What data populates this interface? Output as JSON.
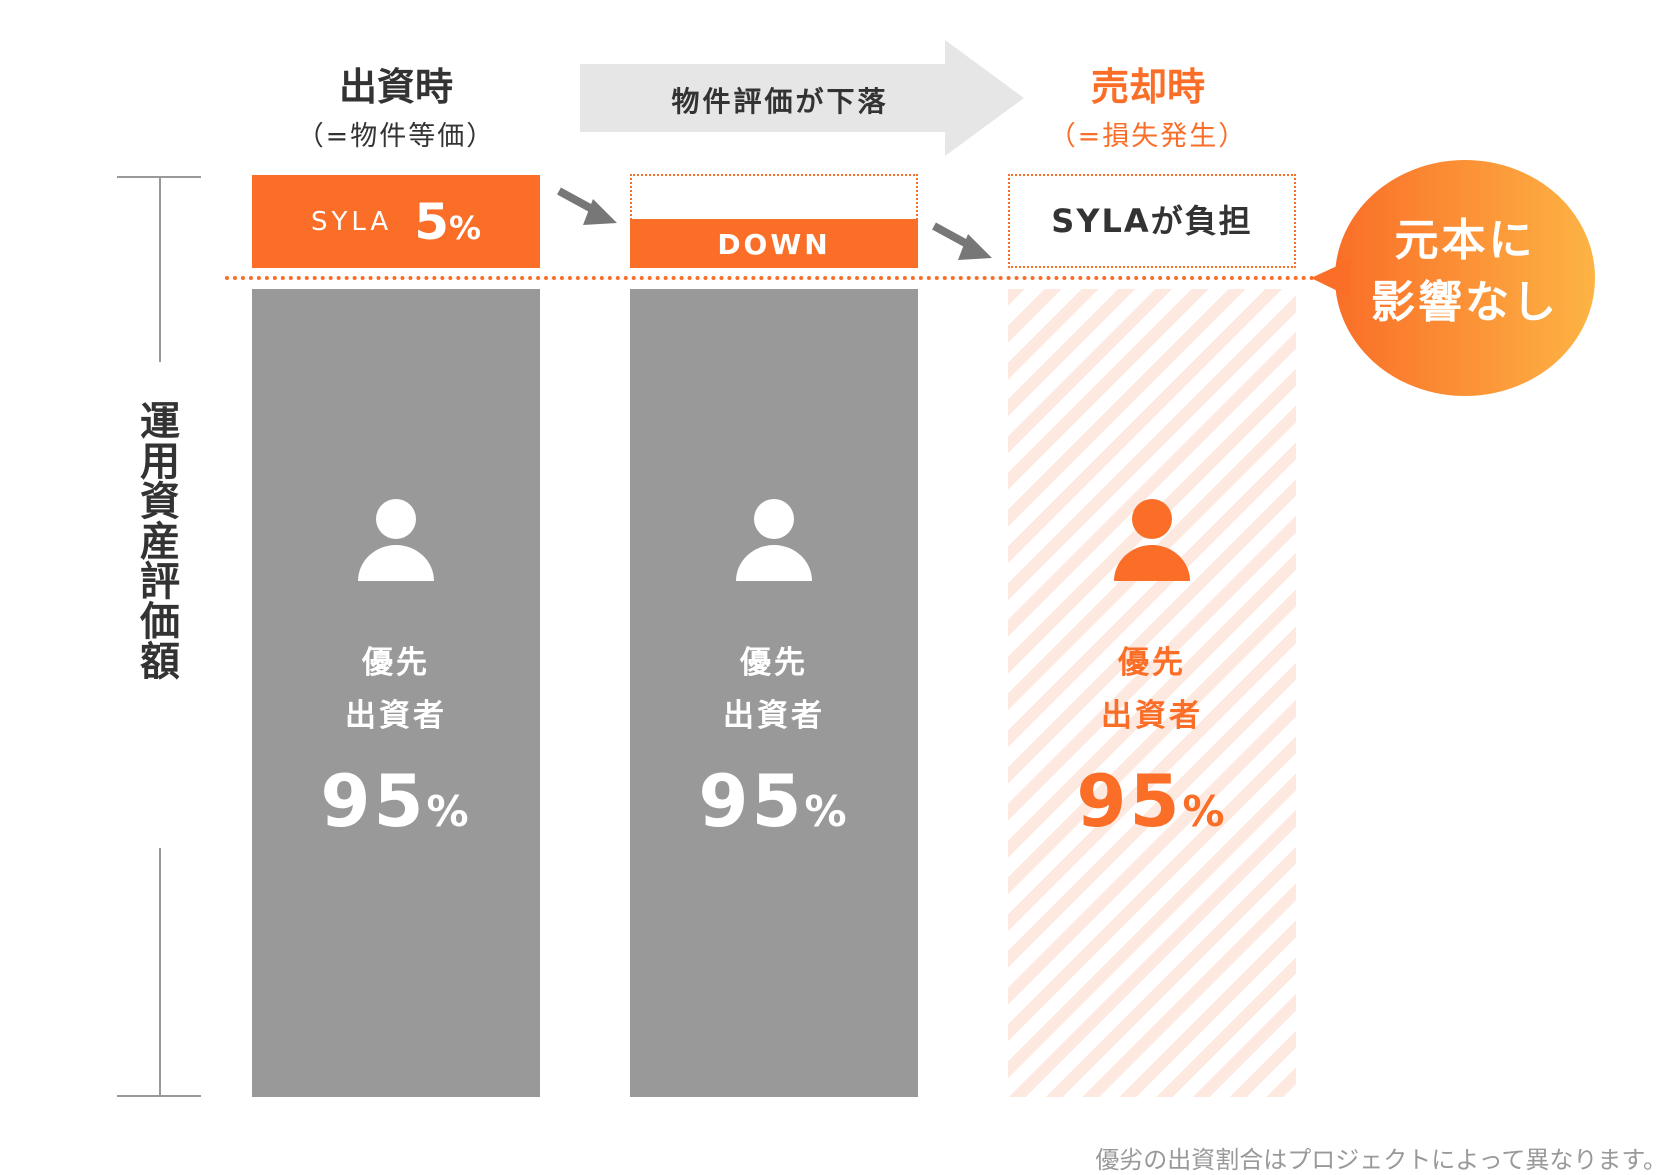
{
  "colors": {
    "accent": "#fa6e28",
    "gray": "#999999",
    "bubble_start": "#fa6e28",
    "bubble_end": "#fdb444"
  },
  "header": {
    "col1_title": "出資時",
    "col1_sub": "（=物件等価）",
    "arrow_label": "物件評価が下落",
    "col3_title": "売却時",
    "col3_sub": "（=損失発生）"
  },
  "axis_label": "運用資産評価額",
  "col1": {
    "top_brand": "SYLA",
    "top_value": "5",
    "top_unit": "%",
    "label1": "優先",
    "label2": "出資者",
    "value": "95",
    "unit": "%"
  },
  "col2": {
    "top_label": "DOWN",
    "label1": "優先",
    "label2": "出資者",
    "value": "95",
    "unit": "%"
  },
  "col3": {
    "top_label": "SYLAが負担",
    "label1": "優先",
    "label2": "出資者",
    "value": "95",
    "unit": "%"
  },
  "bubble": {
    "line1": "元本に",
    "line2": "影響なし"
  },
  "footnote": "優劣の出資割合はプロジェクトによって異なります。"
}
